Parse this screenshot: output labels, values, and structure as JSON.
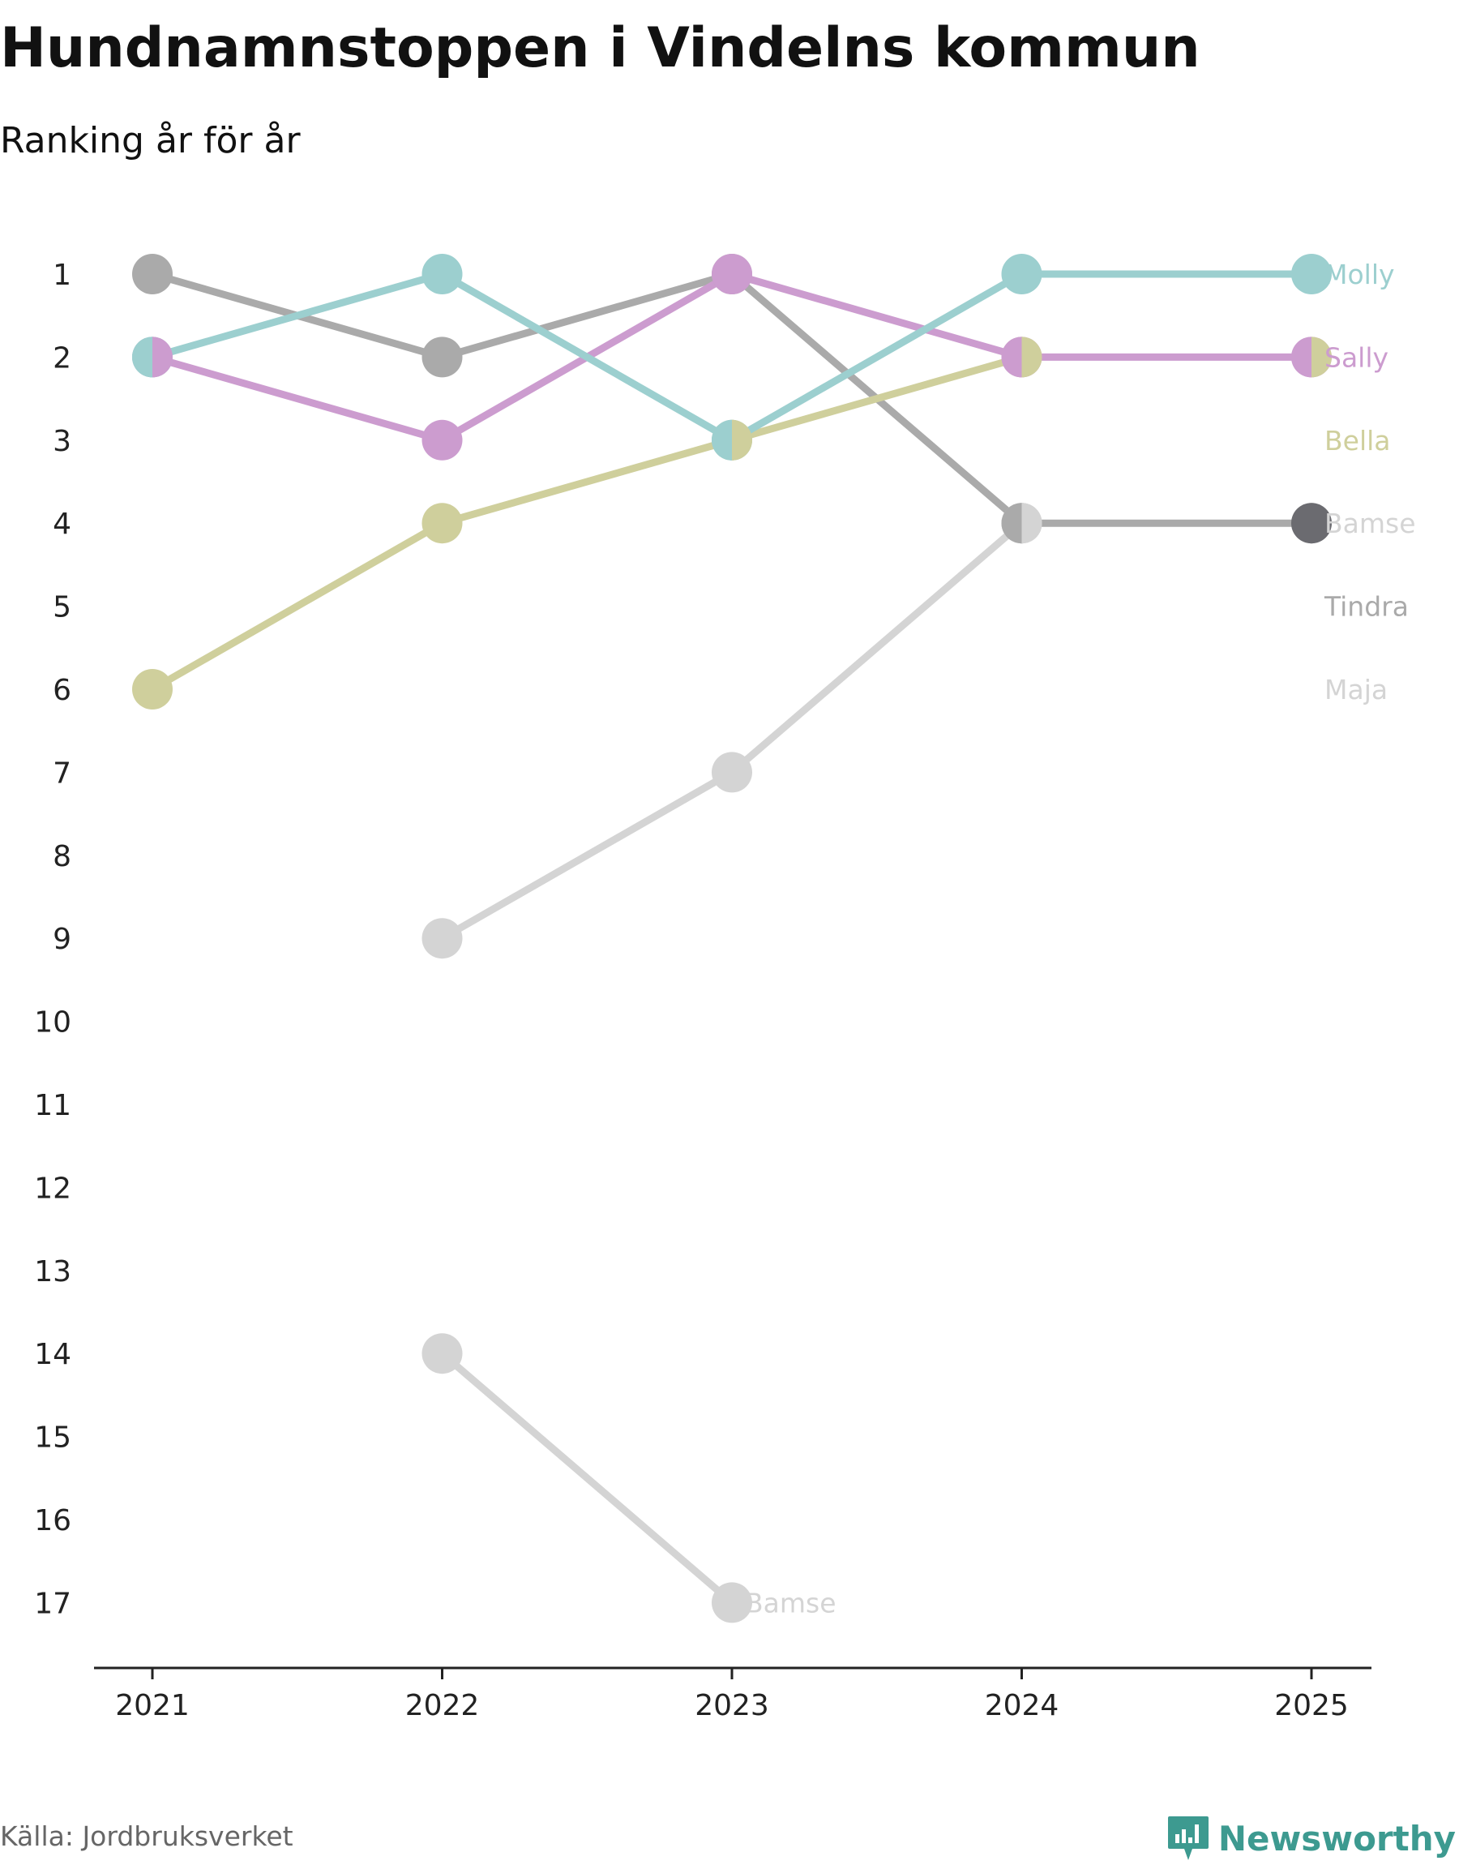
{
  "title": "Hundnamnstoppen i Vindelns kommun",
  "subtitle": "Ranking år för år",
  "source": "Källa: Jordbruksverket",
  "brand": {
    "name": "Newsworthy",
    "icon": "newsworthy-logo-icon",
    "color": "#3d9a90"
  },
  "colors": {
    "Molly": "#9ccfcf",
    "Sally": "#cc9ccf",
    "Bella": "#cfcf9c",
    "Bamse": "#d4d4d4",
    "Tindra": "#aaaaaa",
    "Maja": "#d4d4d4",
    "highlight": "#6b6b70",
    "axis": "#222222",
    "tick_text": "#222222"
  },
  "chart_data": {
    "type": "line",
    "title": "Hundnamnstoppen i Vindelns kommun",
    "subtitle": "Ranking år för år",
    "xlabel": "",
    "ylabel": "",
    "y_inverted": true,
    "ylim": [
      1,
      17
    ],
    "categories": [
      "2021",
      "2022",
      "2023",
      "2024",
      "2025"
    ],
    "yticks": [
      "1",
      "2",
      "3",
      "4",
      "5",
      "6",
      "7",
      "8",
      "9",
      "10",
      "11",
      "12",
      "13",
      "14",
      "15",
      "16",
      "17"
    ],
    "series": [
      {
        "name": "Tindra",
        "color_key": "Tindra",
        "segments": [
          {
            "x": [
              "2021",
              "2022",
              "2023",
              "2024",
              "2025"
            ],
            "values": [
              1,
              2,
              1,
              4,
              4
            ]
          }
        ]
      },
      {
        "name": "Bamse",
        "color_key": "Bamse",
        "segments": [
          {
            "x": [
              "2022",
              "2023",
              "2024"
            ],
            "values": [
              9,
              7,
              4
            ]
          },
          {
            "x": [
              "2022",
              "2023"
            ],
            "values": [
              14,
              17
            ]
          }
        ]
      },
      {
        "name": "Bella",
        "color_key": "Bella",
        "segments": [
          {
            "x": [
              "2021",
              "2022",
              "2023",
              "2024"
            ],
            "values": [
              6,
              4,
              3,
              2
            ]
          }
        ]
      },
      {
        "name": "Sally",
        "color_key": "Sally",
        "segments": [
          {
            "x": [
              "2021",
              "2022",
              "2023",
              "2024",
              "2025"
            ],
            "values": [
              2,
              3,
              1,
              2,
              2
            ]
          }
        ]
      },
      {
        "name": "Molly",
        "color_key": "Molly",
        "segments": [
          {
            "x": [
              "2021",
              "2022",
              "2023",
              "2024",
              "2025"
            ],
            "values": [
              2,
              1,
              3,
              1,
              1
            ]
          }
        ]
      }
    ],
    "split_markers": [
      {
        "x": "2021",
        "value": 2,
        "left": "Molly",
        "right": "Sally"
      },
      {
        "x": "2023",
        "value": 3,
        "left": "Molly",
        "right": "Bella"
      },
      {
        "x": "2024",
        "value": 2,
        "left": "Sally",
        "right": "Bella"
      },
      {
        "x": "2024",
        "value": 4,
        "left": "Tindra",
        "right": "Bamse"
      },
      {
        "x": "2025",
        "value": 2,
        "left": "Sally",
        "right": "Bella"
      }
    ],
    "highlight_markers": [
      {
        "x": "2025",
        "value": 4
      }
    ],
    "end_labels": [
      {
        "text": "Molly",
        "rank": 1,
        "color_key": "Molly"
      },
      {
        "text": "Sally",
        "rank": 2,
        "color_key": "Sally"
      },
      {
        "text": "Bella",
        "rank": 3,
        "color_key": "Bella"
      },
      {
        "text": "Bamse",
        "rank": 4,
        "color_key": "Bamse"
      },
      {
        "text": "Tindra",
        "rank": 5,
        "color_key": "Tindra"
      },
      {
        "text": "Maja",
        "rank": 6,
        "color_key": "Maja"
      }
    ],
    "annotations": [
      {
        "text": "Bamse",
        "x": "2023",
        "value": 17,
        "color_key": "Bamse"
      }
    ]
  }
}
